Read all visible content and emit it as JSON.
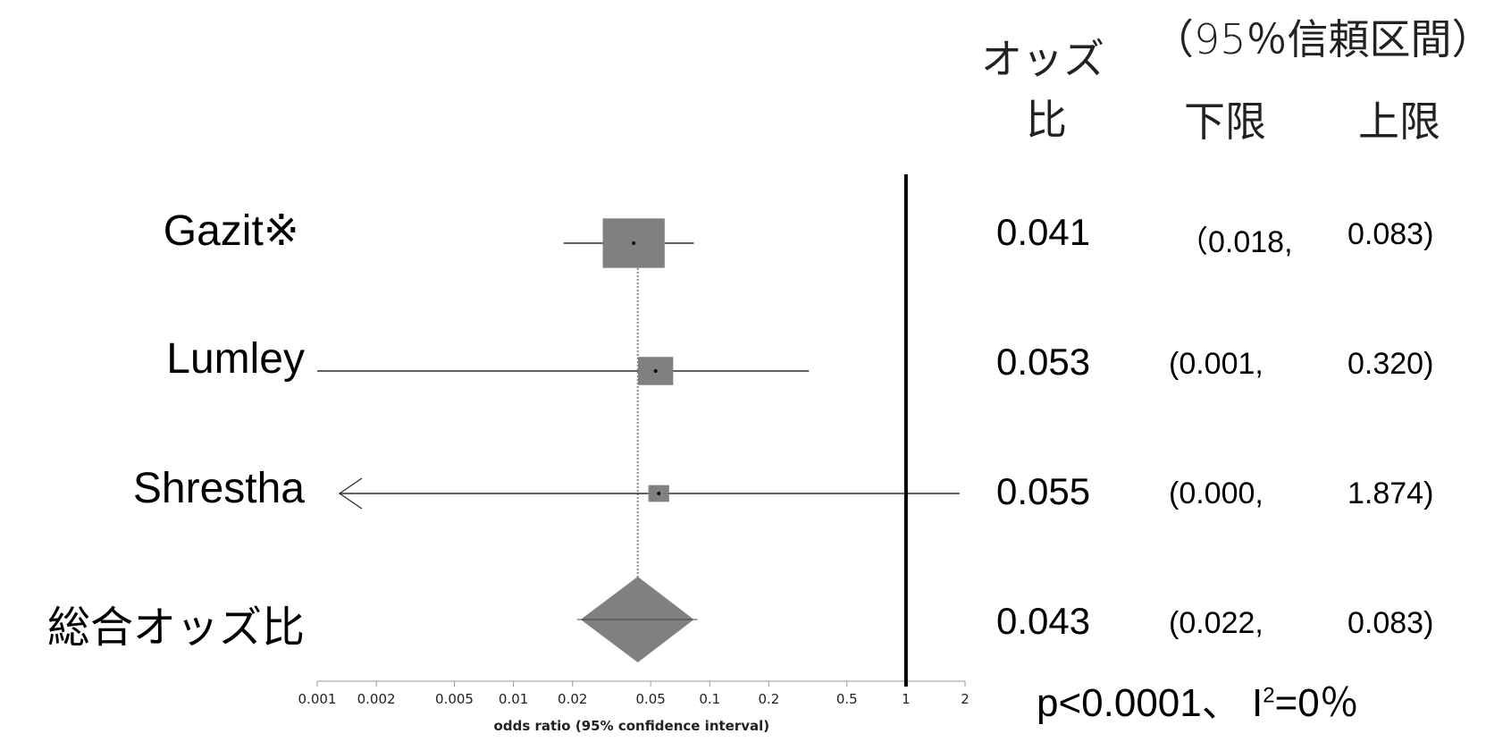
{
  "header": {
    "or_label_line1": "オッズ",
    "or_label_line2": "比",
    "ci_label": "（95％信頼区間）",
    "lower_label": "下限",
    "upper_label": "上限"
  },
  "chart_data": {
    "type": "forest",
    "xscale": "log",
    "xlabel": "odds ratio (95% confidence interval)",
    "xticks": [
      0.001,
      0.002,
      0.005,
      0.01,
      0.02,
      0.05,
      0.1,
      0.2,
      0.5,
      1,
      2
    ],
    "xtick_labels": [
      "0.001",
      "0.002",
      "0.005",
      "0.01",
      "0.02",
      "0.05",
      "0.1",
      "0.2",
      "0.5",
      "1",
      "2"
    ],
    "xlim": [
      0.001,
      2
    ],
    "reference_line": 1,
    "studies": [
      {
        "label": "Gazit※",
        "or": 0.041,
        "lower": 0.018,
        "upper": 0.083,
        "weight": 0.62,
        "or_text": "0.041",
        "lower_text": "（0.018,",
        "upper_text": "0.083)"
      },
      {
        "label": "Lumley",
        "or": 0.053,
        "lower": 0.001,
        "upper": 0.32,
        "weight": 0.2,
        "or_text": "0.053",
        "lower_text": "(0.001,",
        "upper_text": "0.320)"
      },
      {
        "label": "Shrestha",
        "or": 0.055,
        "lower": 0.0,
        "upper": 1.874,
        "weight": 0.07,
        "lower_truncated": true,
        "or_text": "0.055",
        "lower_text": "(0.000,",
        "upper_text": "1.874)"
      }
    ],
    "pooled": {
      "label": "総合オッズ比",
      "or": 0.043,
      "lower": 0.022,
      "upper": 0.083,
      "or_text": "0.043",
      "lower_text": "(0.022,",
      "upper_text": "0.083)"
    },
    "stat_text_main": "p<0.0001、 I",
    "stat_sup": "2",
    "stat_text_tail": "=0％",
    "colors": {
      "box": "#808080",
      "line": "#000000",
      "dotted": "#8a8a8a"
    }
  }
}
